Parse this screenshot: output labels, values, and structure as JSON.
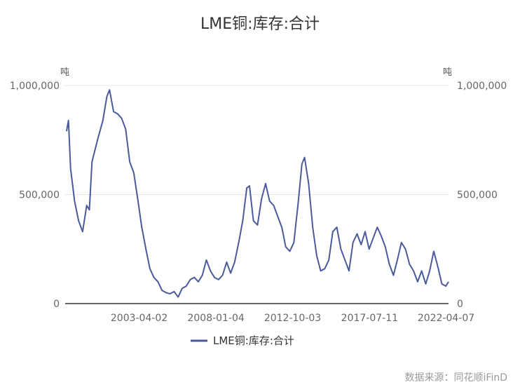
{
  "source_label": "数据来源：同花顺iFinD",
  "colors": {
    "series": "#4a5a9a",
    "grid": "#e6e6e6",
    "axis": "#333333"
  },
  "chart_data": {
    "type": "line",
    "title": "LME铜:库存:合计",
    "y_unit_left": "吨",
    "y_unit_right": "吨",
    "ylim": [
      0,
      1000000
    ],
    "y_ticks": [
      "0",
      "500,000",
      "1,000,000"
    ],
    "y_tick_values": [
      0,
      500000,
      1000000
    ],
    "xlim": [
      "1998-09-01",
      "2022-06-01"
    ],
    "x_ticks": [
      "2003-04-02",
      "2008-01-04",
      "2012-10-03",
      "2017-07-11",
      "2022-04-07"
    ],
    "grid": true,
    "legend_position": "bottom",
    "series": [
      {
        "name": "LME铜:库存:合计",
        "points": [
          [
            "1998-10-01",
            790000
          ],
          [
            "1998-11-15",
            840000
          ],
          [
            "1999-01-01",
            620000
          ],
          [
            "1999-04-01",
            470000
          ],
          [
            "1999-07-01",
            380000
          ],
          [
            "1999-10-01",
            330000
          ],
          [
            "2000-01-01",
            450000
          ],
          [
            "2000-03-01",
            430000
          ],
          [
            "2000-05-01",
            650000
          ],
          [
            "2000-09-01",
            750000
          ],
          [
            "2001-01-01",
            840000
          ],
          [
            "2001-04-01",
            950000
          ],
          [
            "2001-06-01",
            980000
          ],
          [
            "2001-09-01",
            880000
          ],
          [
            "2001-12-01",
            870000
          ],
          [
            "2002-03-01",
            850000
          ],
          [
            "2002-06-01",
            800000
          ],
          [
            "2002-09-01",
            650000
          ],
          [
            "2002-12-01",
            600000
          ],
          [
            "2003-03-01",
            480000
          ],
          [
            "2003-06-01",
            350000
          ],
          [
            "2003-09-01",
            250000
          ],
          [
            "2003-12-01",
            160000
          ],
          [
            "2004-03-01",
            120000
          ],
          [
            "2004-06-01",
            100000
          ],
          [
            "2004-09-01",
            60000
          ],
          [
            "2004-12-01",
            50000
          ],
          [
            "2005-03-01",
            45000
          ],
          [
            "2005-06-01",
            55000
          ],
          [
            "2005-09-01",
            30000
          ],
          [
            "2005-12-01",
            70000
          ],
          [
            "2006-03-01",
            80000
          ],
          [
            "2006-06-01",
            110000
          ],
          [
            "2006-09-01",
            120000
          ],
          [
            "2006-12-01",
            100000
          ],
          [
            "2007-03-01",
            130000
          ],
          [
            "2007-06-01",
            200000
          ],
          [
            "2007-09-01",
            150000
          ],
          [
            "2007-12-01",
            120000
          ],
          [
            "2008-03-01",
            110000
          ],
          [
            "2008-06-01",
            130000
          ],
          [
            "2008-09-01",
            190000
          ],
          [
            "2008-12-01",
            140000
          ],
          [
            "2009-03-01",
            190000
          ],
          [
            "2009-06-01",
            280000
          ],
          [
            "2009-09-01",
            380000
          ],
          [
            "2009-12-01",
            530000
          ],
          [
            "2010-02-01",
            540000
          ],
          [
            "2010-05-01",
            380000
          ],
          [
            "2010-08-01",
            360000
          ],
          [
            "2010-11-01",
            480000
          ],
          [
            "2011-02-01",
            550000
          ],
          [
            "2011-05-01",
            470000
          ],
          [
            "2011-08-01",
            450000
          ],
          [
            "2011-11-01",
            400000
          ],
          [
            "2012-02-01",
            350000
          ],
          [
            "2012-05-01",
            260000
          ],
          [
            "2012-08-01",
            240000
          ],
          [
            "2012-11-01",
            280000
          ],
          [
            "2013-02-01",
            450000
          ],
          [
            "2013-05-01",
            640000
          ],
          [
            "2013-07-01",
            670000
          ],
          [
            "2013-10-01",
            550000
          ],
          [
            "2014-01-01",
            350000
          ],
          [
            "2014-04-01",
            220000
          ],
          [
            "2014-07-01",
            150000
          ],
          [
            "2014-10-01",
            160000
          ],
          [
            "2015-01-01",
            200000
          ],
          [
            "2015-04-01",
            330000
          ],
          [
            "2015-07-01",
            350000
          ],
          [
            "2015-10-01",
            250000
          ],
          [
            "2016-01-01",
            200000
          ],
          [
            "2016-04-01",
            150000
          ],
          [
            "2016-07-01",
            280000
          ],
          [
            "2016-10-01",
            320000
          ],
          [
            "2017-01-01",
            270000
          ],
          [
            "2017-04-01",
            330000
          ],
          [
            "2017-07-01",
            250000
          ],
          [
            "2017-10-01",
            300000
          ],
          [
            "2018-01-01",
            350000
          ],
          [
            "2018-04-01",
            310000
          ],
          [
            "2018-07-01",
            260000
          ],
          [
            "2018-10-01",
            180000
          ],
          [
            "2019-01-01",
            130000
          ],
          [
            "2019-04-01",
            200000
          ],
          [
            "2019-07-01",
            280000
          ],
          [
            "2019-10-01",
            250000
          ],
          [
            "2020-01-01",
            180000
          ],
          [
            "2020-04-01",
            150000
          ],
          [
            "2020-07-01",
            100000
          ],
          [
            "2020-10-01",
            150000
          ],
          [
            "2021-01-01",
            90000
          ],
          [
            "2021-04-01",
            150000
          ],
          [
            "2021-07-01",
            240000
          ],
          [
            "2021-10-01",
            170000
          ],
          [
            "2022-01-01",
            90000
          ],
          [
            "2022-04-01",
            80000
          ],
          [
            "2022-06-01",
            100000
          ]
        ]
      }
    ]
  }
}
